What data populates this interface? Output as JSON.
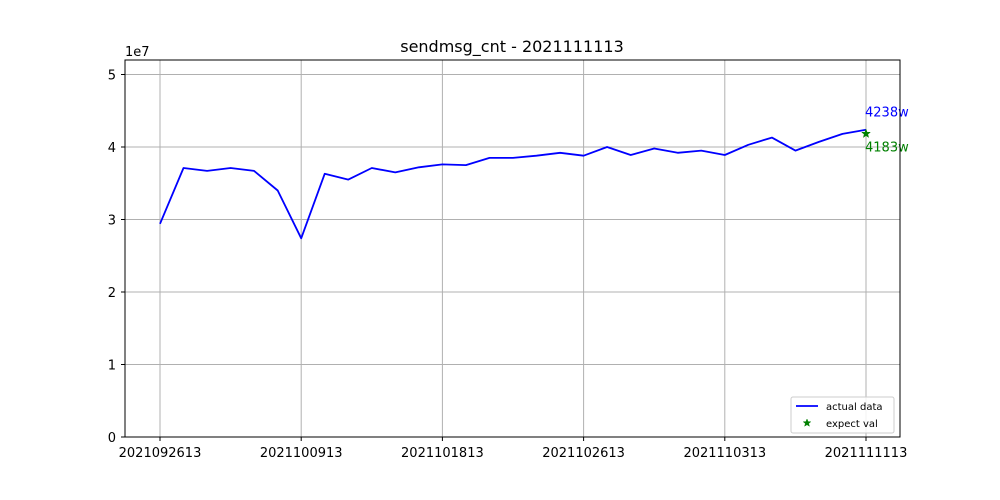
{
  "chart_data": {
    "type": "line",
    "title": "sendmsg_cnt - 2021111113",
    "xlabel": "",
    "ylabel": "",
    "y_offset_label": "1e7",
    "y_scale": 10000000,
    "ylim": [
      0,
      52000000
    ],
    "y_ticks": [
      0,
      10000000,
      20000000,
      30000000,
      40000000,
      50000000
    ],
    "y_tick_labels": [
      "0",
      "1",
      "2",
      "3",
      "4",
      "5"
    ],
    "x_tick_labels": [
      "2021092613",
      "2021100913",
      "2021101813",
      "2021102613",
      "2021110313",
      "2021111113"
    ],
    "x_tick_positions": [
      0,
      6,
      12,
      18,
      24,
      30
    ],
    "grid": true,
    "legend_position": "lower-right",
    "colors": {
      "actual": "#0000ff",
      "expect": "#008000",
      "grid": "#b0b0b0"
    },
    "series": [
      {
        "name": "actual data",
        "style": "line",
        "values": [
          29400000,
          37100000,
          36700000,
          37100000,
          36700000,
          34000000,
          27400000,
          36300000,
          35500000,
          37100000,
          36500000,
          37200000,
          37600000,
          37500000,
          38500000,
          38500000,
          38800000,
          39200000,
          38800000,
          40000000,
          38900000,
          39800000,
          39200000,
          39500000,
          38900000,
          40300000,
          41300000,
          39500000,
          40700000,
          41800000,
          42380000
        ]
      },
      {
        "name": "expect val",
        "style": "star-marker",
        "points": [
          {
            "x": 30,
            "y": 41830000
          }
        ]
      }
    ],
    "annotations": [
      {
        "text": "4238w",
        "series": "actual data",
        "color": "#0000ff"
      },
      {
        "text": "4183w",
        "series": "expect val",
        "color": "#008000"
      }
    ]
  }
}
